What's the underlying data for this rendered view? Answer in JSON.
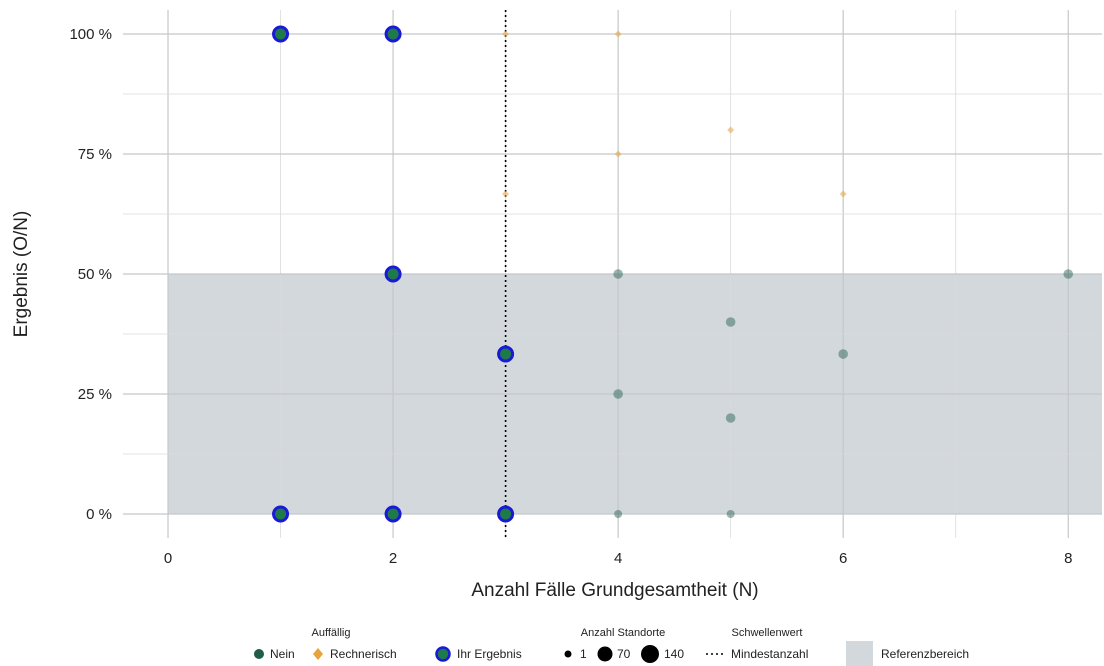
{
  "chart_data": {
    "type": "scatter",
    "xlabel": "Anzahl Fälle Grundgesamtheit (N)",
    "ylabel": "Ergebnis (O/N)",
    "xlim": [
      -0.4,
      8.3
    ],
    "ylim": [
      -0.05,
      1.05
    ],
    "x_ticks": [
      0,
      2,
      4,
      6,
      8
    ],
    "x_tick_labels": [
      "0",
      "2",
      "4",
      "6",
      "8"
    ],
    "y_ticks": [
      0,
      0.25,
      0.5,
      0.75,
      1.0
    ],
    "y_tick_labels": [
      "0 %",
      "25 %",
      "50 %",
      "75 %",
      "100 %"
    ],
    "grid": true,
    "reference_range": {
      "y_min": 0,
      "y_max": 0.5,
      "x_min": 0,
      "label": "Referenzbereich",
      "color": "#d3d8dc"
    },
    "threshold": {
      "x": 3,
      "label": "Mindestanzahl"
    },
    "series": [
      {
        "name": "Nein",
        "color": "#1f5c4a",
        "marker": "circle",
        "points": [
          {
            "x": 4,
            "y": 0.5
          },
          {
            "x": 5,
            "y": 0.4
          },
          {
            "x": 6,
            "y": 0.3333
          },
          {
            "x": 8,
            "y": 0.5
          },
          {
            "x": 4,
            "y": 0.25
          },
          {
            "x": 5,
            "y": 0.2
          },
          {
            "x": 4,
            "y": 0
          },
          {
            "x": 5,
            "y": 0
          }
        ]
      },
      {
        "name": "Rechnerisch",
        "color": "#e8a23a",
        "marker": "diamond",
        "points": [
          {
            "x": 3,
            "y": 1.0
          },
          {
            "x": 4,
            "y": 1.0
          },
          {
            "x": 3,
            "y": 0.6667
          },
          {
            "x": 4,
            "y": 0.75
          },
          {
            "x": 5,
            "y": 0.8
          },
          {
            "x": 6,
            "y": 0.6667
          }
        ]
      },
      {
        "name": "Ihr Ergebnis",
        "color": "#1f7a4a",
        "outline": "#1a1ad6",
        "marker": "circle",
        "points": [
          {
            "x": 1,
            "y": 1.0
          },
          {
            "x": 2,
            "y": 1.0
          },
          {
            "x": 2,
            "y": 0.5
          },
          {
            "x": 3,
            "y": 0.3333
          },
          {
            "x": 1,
            "y": 0
          },
          {
            "x": 2,
            "y": 0
          },
          {
            "x": 3,
            "y": 0
          }
        ]
      }
    ],
    "legend": {
      "placement": "bottom",
      "groups": [
        {
          "title": "Auffällig",
          "items": [
            "Nein",
            "Rechnerisch"
          ]
        },
        {
          "title": "",
          "items": [
            "Ihr Ergebnis"
          ]
        },
        {
          "title": "Anzahl Standorte",
          "items": [
            "1",
            "70",
            "140"
          ]
        },
        {
          "title": "Schwellenwert",
          "items": [
            "Mindestanzahl"
          ]
        },
        {
          "title": "",
          "items": [
            "Referenzbereich"
          ]
        }
      ]
    }
  }
}
